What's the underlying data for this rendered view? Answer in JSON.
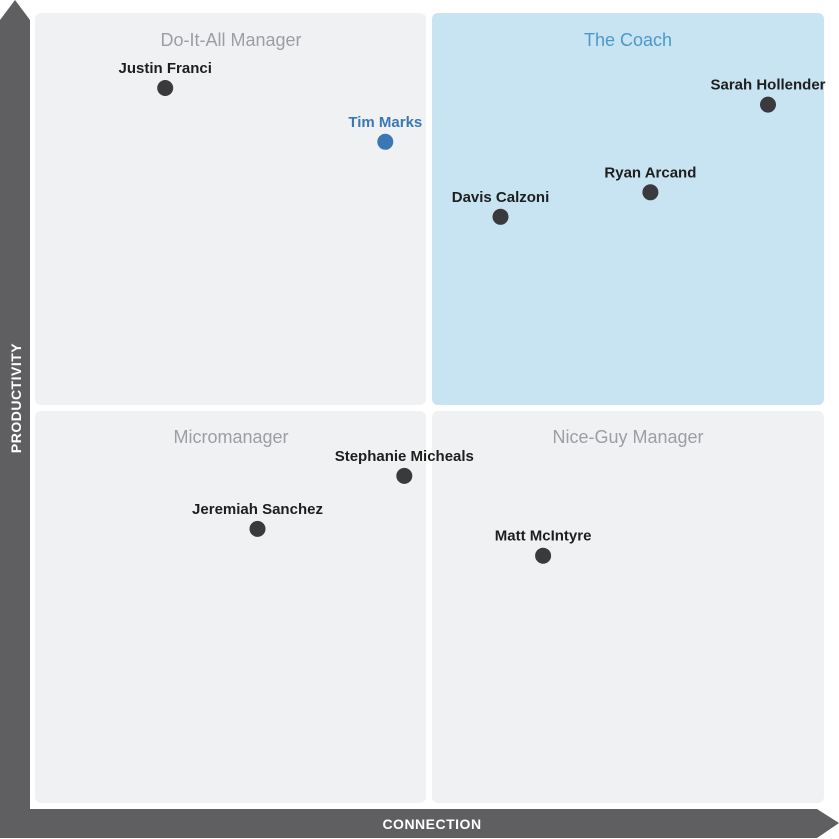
{
  "chart_data": {
    "type": "scatter",
    "xlabel": "CONNECTION",
    "ylabel": "PRODUCTIVITY",
    "xlim": [
      0,
      100
    ],
    "ylim": [
      0,
      100
    ],
    "grid": false,
    "quadrants": [
      {
        "id": "top-left",
        "title": "Do-It-All Manager",
        "highlighted": false
      },
      {
        "id": "top-right",
        "title": "The Coach",
        "highlighted": true
      },
      {
        "id": "bottom-left",
        "title": "Micromanager",
        "highlighted": false
      },
      {
        "id": "bottom-right",
        "title": "Nice-Guy Manager",
        "highlighted": false
      }
    ],
    "points": [
      {
        "name": "Justin Franci",
        "x": 16.5,
        "y": 90.5,
        "highlighted": false
      },
      {
        "name": "Tim Marks",
        "x": 44.4,
        "y": 83.7,
        "highlighted": true
      },
      {
        "name": "Sarah Hollender",
        "x": 92.9,
        "y": 88.4,
        "highlighted": false
      },
      {
        "name": "Ryan Arcand",
        "x": 78.0,
        "y": 77.3,
        "highlighted": false
      },
      {
        "name": "Davis Calzoni",
        "x": 59.0,
        "y": 74.2,
        "highlighted": false
      },
      {
        "name": "Stephanie Micheals",
        "x": 46.8,
        "y": 41.4,
        "highlighted": false
      },
      {
        "name": "Jeremiah Sanchez",
        "x": 28.2,
        "y": 34.7,
        "highlighted": false
      },
      {
        "name": "Matt McIntyre",
        "x": 64.4,
        "y": 31.3,
        "highlighted": false
      }
    ]
  },
  "colors": {
    "quadrant_bg": "#f0f1f3",
    "highlight_bg": "#c8e3f2",
    "quadrant_title": "#9b9ea3",
    "highlight_title": "#4b9ac4",
    "point": "#3a3a3c",
    "highlight_point": "#3a78b5",
    "highlight_label": "#3a78b5",
    "label": "#1e1e1e",
    "axis": "#5f5f61"
  }
}
